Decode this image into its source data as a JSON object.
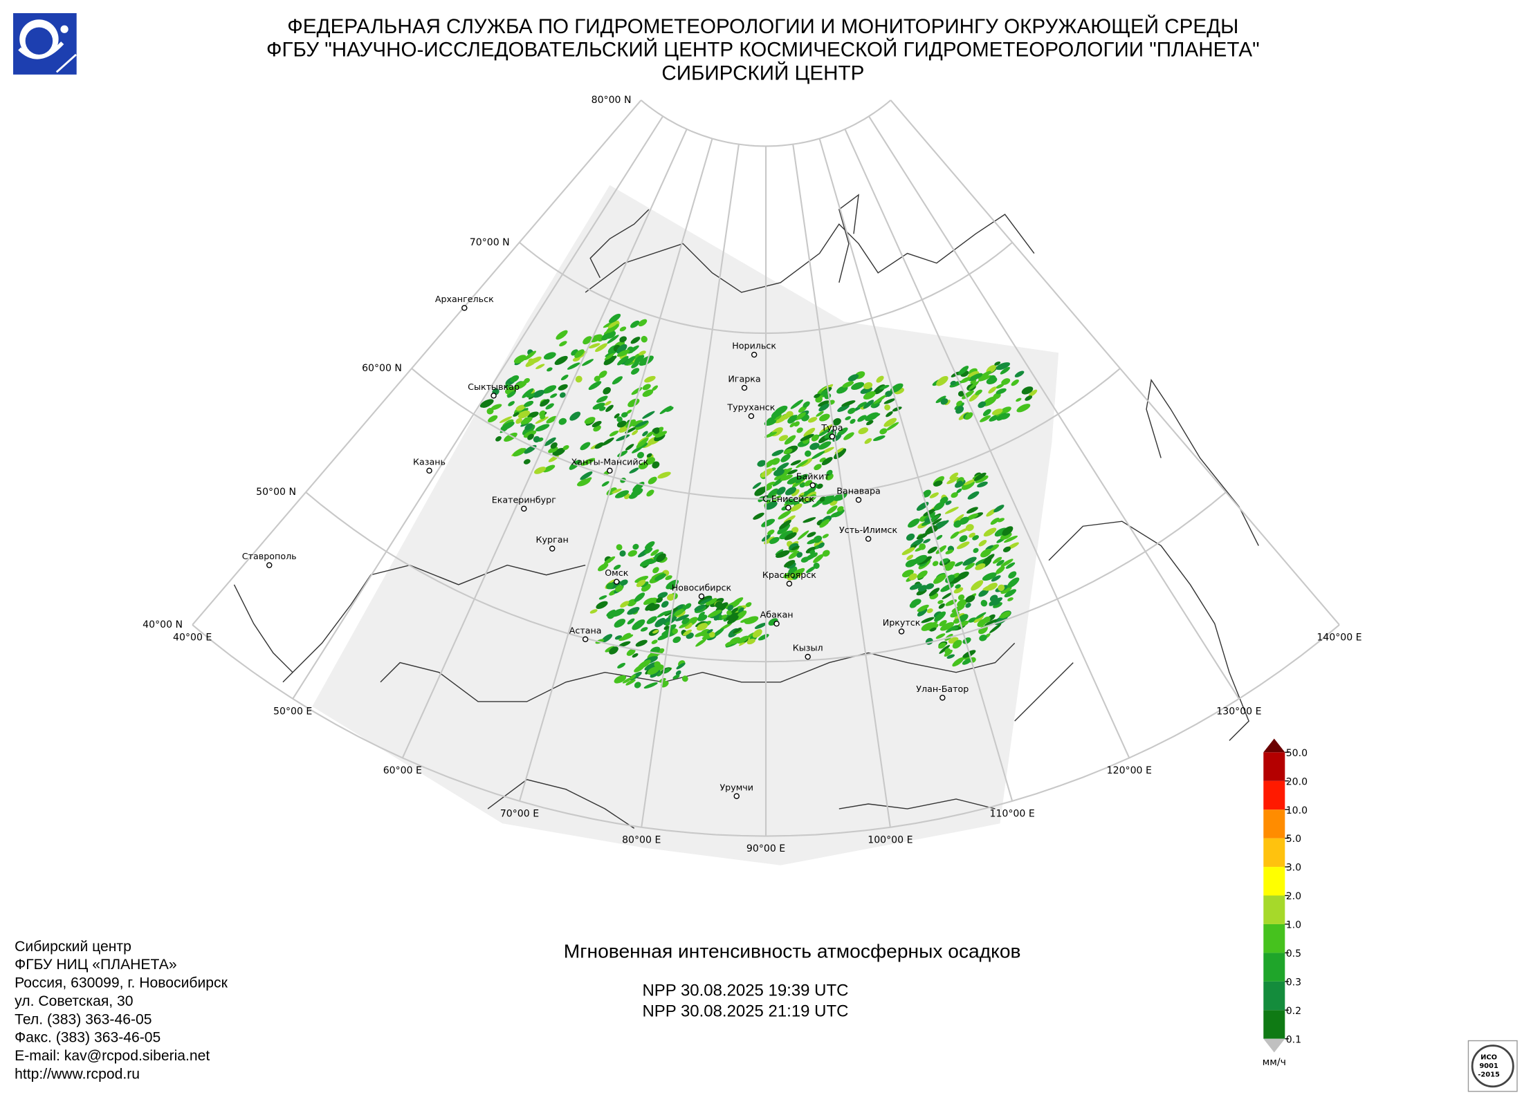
{
  "header": {
    "lines": [
      "ФЕДЕРАЛЬНАЯ СЛУЖБА ПО ГИДРОМЕТЕОРОЛОГИИ И МОНИТОРИНГУ ОКРУЖАЮЩЕЙ СРЕДЫ",
      "ФГБУ \"НАУЧНО-ИССЛЕДОВАТЕЛЬСКИЙ ЦЕНТР КОСМИЧЕСКОЙ ГИДРОМЕТЕОРОЛОГИИ \"ПЛАНЕТА\"",
      "СИБИРСКИЙ ЦЕНТР"
    ]
  },
  "map": {
    "lat_labels": [
      "80°00 N",
      "70°00 N",
      "60°00 N",
      "50°00 N",
      "40°00 N"
    ],
    "lon_labels": [
      "40°00 E",
      "50°00 E",
      "60°00 E",
      "70°00 E",
      "80°00 E",
      "90°00 E",
      "100°00 E",
      "110°00 E",
      "120°00 E",
      "130°00 E",
      "140°00 E"
    ],
    "cities": [
      "Архангельск",
      "Сыктывкар",
      "Казань",
      "Екатеринбург",
      "Ставрополь",
      "Курган",
      "Ханты-Мансийск",
      "Омск",
      "Астана",
      "Новосибирск",
      "Норильск",
      "Игарка",
      "Туруханск",
      "Тура",
      "Байкит",
      "Ванавара",
      "С.Енисейск",
      "Усть-Илимск",
      "Красноярск",
      "Абакан",
      "Иркутск",
      "Кызыл",
      "Улан-Батор",
      "Урумчи"
    ]
  },
  "legend": {
    "ticks": [
      {
        "value": 0.1,
        "label": "0.1"
      },
      {
        "value": 0.2,
        "label": "0.2"
      },
      {
        "value": 0.3,
        "label": "0.3"
      },
      {
        "value": 0.5,
        "label": "0.5"
      },
      {
        "value": 1,
        "label": "1.0"
      },
      {
        "value": 2,
        "label": "2.0"
      },
      {
        "value": 3,
        "label": "3.0"
      },
      {
        "value": 5,
        "label": "5.0"
      },
      {
        "value": 10,
        "label": "10.0"
      },
      {
        "value": 20,
        "label": "20.0"
      },
      {
        "value": 50,
        "label": "50.0"
      }
    ],
    "colors": [
      "#0f7a14",
      "#148c3c",
      "#1fa52a",
      "#46c21e",
      "#a6d92a",
      "#ffff00",
      "#ffc20e",
      "#ff8c00",
      "#ff1a00",
      "#b40000"
    ],
    "under_color": "#c0c0c0",
    "over_color": "#6b0000",
    "unit": "мм/ч"
  },
  "product": {
    "title": "Мгновенная интенсивность атмосферных осадков",
    "passes": [
      "NPP 30.08.2025  19:39 UTC",
      "NPP 30.08.2025  21:19 UTC"
    ]
  },
  "contact": {
    "lines": [
      "Сибирский центр",
      "ФГБУ НИЦ «ПЛАНЕТА»",
      "Россия, 630099, г. Новосибирск",
      "ул. Советская, 30",
      "Тел. (383) 363-46-05",
      "Факс. (383) 363-46-05",
      "E-mail: kav@rcpod.siberia.net",
      "http://www.rcpod.ru"
    ]
  },
  "certificate": {
    "lines": [
      "ИСО",
      "9001",
      "-2015"
    ]
  }
}
